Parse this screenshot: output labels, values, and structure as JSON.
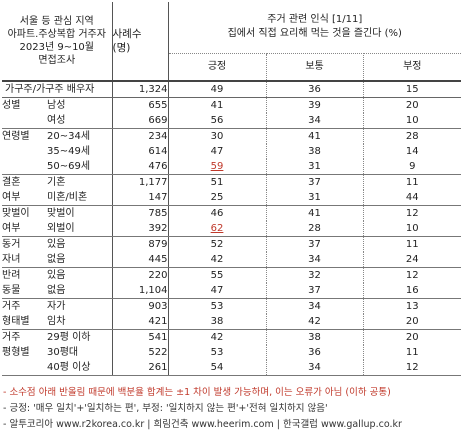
{
  "header": {
    "left_lines": [
      "서울 등 관심 지역",
      "아파트.주상복합 거주자",
      "2023년 9~10월",
      "면접조사"
    ],
    "cases_lines": [
      "사례수",
      "(명)"
    ],
    "title_lines": [
      "주거 관련 인식 [1/11]",
      "집에서 직접 요리해 먹는 것을 즐긴다 (%)"
    ],
    "columns": [
      "긍정",
      "보통",
      "부정"
    ]
  },
  "rows": [
    {
      "cat": "가구주/가구주 배우자",
      "sub": "",
      "n": "1,324",
      "v": [
        "49",
        "36",
        "15"
      ],
      "cls": "g0 total"
    },
    {
      "cat": "성별",
      "sub": "남성",
      "n": "655",
      "v": [
        "41",
        "39",
        "20"
      ],
      "cls": ""
    },
    {
      "cat": "",
      "sub": "여성",
      "n": "669",
      "v": [
        "56",
        "34",
        "10"
      ],
      "cls": "gsep"
    },
    {
      "cat": "연령별",
      "sub": "20~34세",
      "n": "234",
      "v": [
        "30",
        "41",
        "28"
      ],
      "cls": ""
    },
    {
      "cat": "",
      "sub": "35~49세",
      "n": "614",
      "v": [
        "47",
        "38",
        "14"
      ],
      "cls": ""
    },
    {
      "cat": "",
      "sub": "50~69세",
      "n": "476",
      "v": [
        "59",
        "31",
        "9"
      ],
      "cls": "gsep",
      "hl": 0
    },
    {
      "cat": "결혼",
      "sub": "기혼",
      "n": "1,177",
      "v": [
        "51",
        "37",
        "11"
      ],
      "cls": ""
    },
    {
      "cat": "여부",
      "sub": "미혼/비혼",
      "n": "147",
      "v": [
        "25",
        "31",
        "44"
      ],
      "cls": "gsep"
    },
    {
      "cat": "맞벌이",
      "sub": "맞벌이",
      "n": "785",
      "v": [
        "46",
        "41",
        "12"
      ],
      "cls": ""
    },
    {
      "cat": "여부",
      "sub": "외벌이",
      "n": "392",
      "v": [
        "62",
        "28",
        "10"
      ],
      "cls": "gsep",
      "hl": 0
    },
    {
      "cat": "동거",
      "sub": "있음",
      "n": "879",
      "v": [
        "52",
        "37",
        "11"
      ],
      "cls": ""
    },
    {
      "cat": "자녀",
      "sub": "없음",
      "n": "445",
      "v": [
        "42",
        "34",
        "24"
      ],
      "cls": "gsep"
    },
    {
      "cat": "반려",
      "sub": "있음",
      "n": "220",
      "v": [
        "55",
        "32",
        "12"
      ],
      "cls": ""
    },
    {
      "cat": "동물",
      "sub": "없음",
      "n": "1,104",
      "v": [
        "47",
        "37",
        "16"
      ],
      "cls": "gsep"
    },
    {
      "cat": "거주",
      "sub": "자가",
      "n": "903",
      "v": [
        "53",
        "34",
        "13"
      ],
      "cls": ""
    },
    {
      "cat": "형태별",
      "sub": "임차",
      "n": "421",
      "v": [
        "38",
        "42",
        "20"
      ],
      "cls": "gsep"
    },
    {
      "cat": "거주",
      "sub": "29평 이하",
      "n": "541",
      "v": [
        "42",
        "38",
        "20"
      ],
      "cls": ""
    },
    {
      "cat": "평형별",
      "sub": "30평대",
      "n": "522",
      "v": [
        "53",
        "36",
        "11"
      ],
      "cls": ""
    },
    {
      "cat": "",
      "sub": "40평 이상",
      "n": "261",
      "v": [
        "54",
        "34",
        "12"
      ],
      "cls": "gsep"
    }
  ],
  "footer": {
    "note1": "- 소수점 아래 반올림 때문에 백분율 합계는 ±1 차이 발생 가능하며, 이는 오류가 아님 (이하 공통)",
    "note2": "- 긍정: '매우 일치'+'일치하는 편', 부정: '일치하지 않는 편'+'전혀 일치하지 않음'",
    "note3": "- 알투코리아 www.r2korea.co.kr | 희림건축 www.heerim.com | 한국갤럽 www.gallup.co.kr"
  },
  "highlight_color": "#c0392b"
}
